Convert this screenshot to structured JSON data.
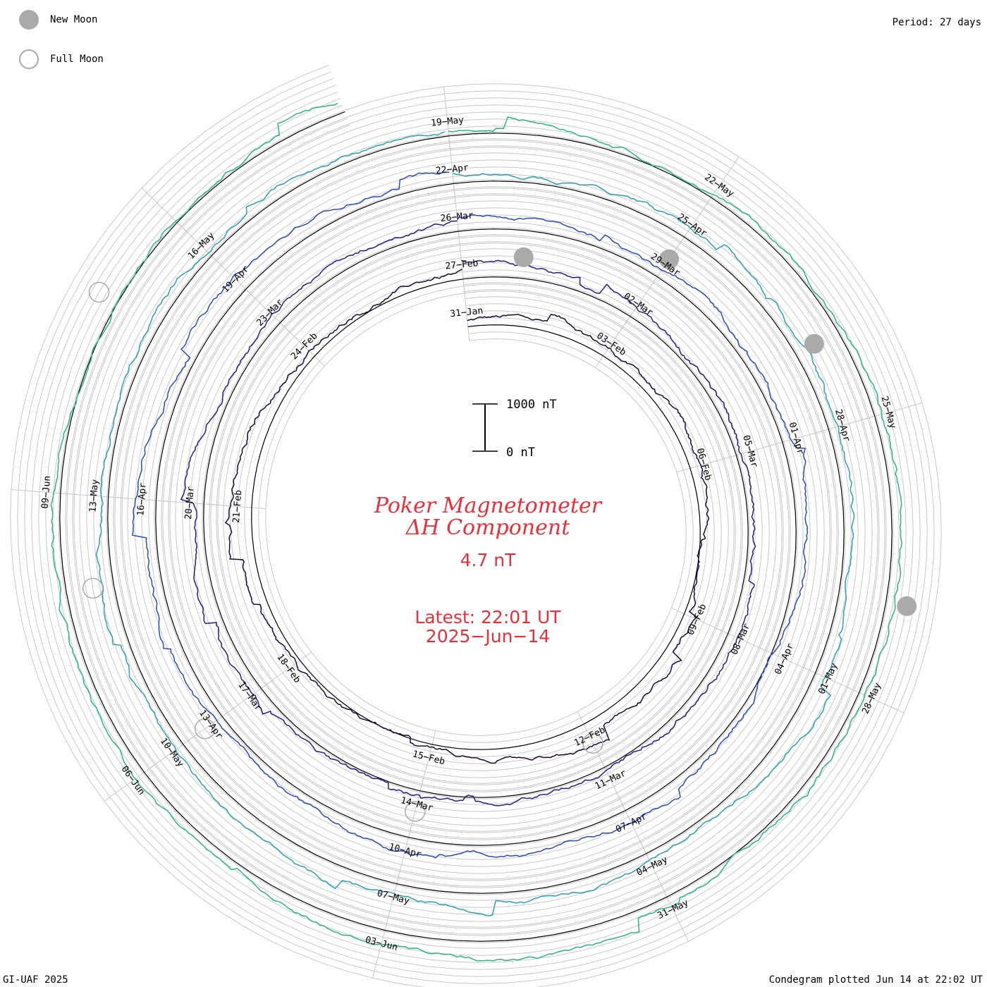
{
  "legend": {
    "new_moon": {
      "label": "New Moon",
      "color": "#aaaaaa"
    },
    "full_moon": {
      "label": "Full Moon",
      "color": "#aaaaaa"
    }
  },
  "period_label": "Period: 27 days",
  "footer": {
    "left": "GI-UAF 2025",
    "right": "Condegram plotted Jun 14 at 22:02 UT"
  },
  "center": {
    "title": "Poker Magnetometer",
    "subtitle": "ΔH Component",
    "current_value": "4.7 nT",
    "latest": "Latest: 22:01 UT",
    "latest_date": "2025−Jun−14",
    "scale_top": "1000 nT",
    "scale_bottom": "0 nT",
    "text_color": "#e8303a"
  },
  "chart_data": {
    "type": "line",
    "chart_kind": "condegram spiral",
    "period_days": 27,
    "series_colors": [
      "#1a0a3a",
      "#2a1a8a",
      "#2a4abf",
      "#2aa0b0",
      "#2ab87a",
      "#7ac030",
      "#b8a020",
      "#c07010",
      "#c03010"
    ],
    "date_labels": [
      "31−Jan",
      "03−Feb",
      "06−Feb",
      "09−Feb",
      "12−Feb",
      "15−Feb",
      "18−Feb",
      "21−Feb",
      "24−Feb",
      "27−Feb",
      "02−Mar",
      "05−Mar",
      "08−Mar",
      "11−Mar",
      "14−Mar",
      "17−Mar",
      "20−Mar",
      "23−Mar",
      "26−Mar",
      "29−Mar",
      "01−Apr",
      "04−Apr",
      "07−Apr",
      "10−Apr",
      "13−Apr",
      "16−Apr",
      "19−Apr",
      "22−Apr",
      "25−Apr",
      "28−Apr",
      "01−May",
      "04−May",
      "07−May",
      "10−May",
      "13−May",
      "16−May",
      "19−May",
      "22−May",
      "25−May",
      "28−May",
      "31−May",
      "03−Jun",
      "06−Jun",
      "09−Jun"
    ],
    "start_date": "2025-01-31",
    "end_date": "2025-06-14",
    "ring_step_nT": 100,
    "scale_bar_nT": [
      0,
      1000
    ],
    "new_moons": [
      "2025-01-29",
      "2025-02-28",
      "2025-03-29",
      "2025-04-27",
      "2025-05-27"
    ],
    "full_moons": [
      "2025-02-12",
      "2025-03-14",
      "2025-04-13",
      "2025-05-12",
      "2025-06-11"
    ]
  }
}
